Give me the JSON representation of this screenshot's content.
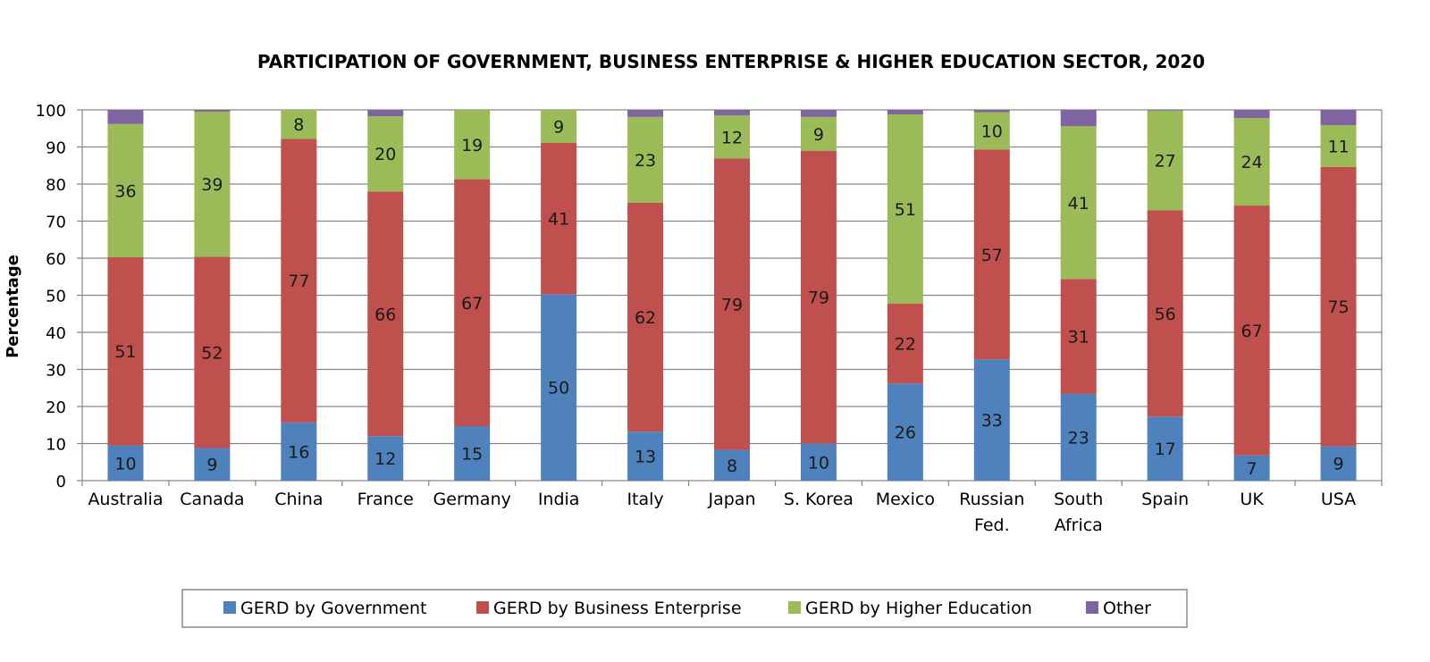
{
  "chart_data": {
    "type": "bar",
    "stacked": true,
    "title": "PARTICIPATION OF GOVERNMENT, BUSINESS ENTERPRISE & HIGHER EDUCATION SECTOR, 2020",
    "xlabel": "",
    "ylabel": "Percentage",
    "ylim": [
      0,
      100
    ],
    "yticks": [
      0,
      10,
      20,
      30,
      40,
      50,
      60,
      70,
      80,
      90,
      100
    ],
    "grid": true,
    "legend_position": "bottom",
    "categories": [
      [
        "Australia"
      ],
      [
        "Canada"
      ],
      [
        "China"
      ],
      [
        "France"
      ],
      [
        "Germany"
      ],
      [
        "India"
      ],
      [
        "Italy"
      ],
      [
        "Japan"
      ],
      [
        "S. Korea"
      ],
      [
        "Mexico"
      ],
      [
        "Russian",
        "Fed."
      ],
      [
        "South",
        "Africa"
      ],
      [
        "Spain"
      ],
      [
        "UK"
      ],
      [
        "USA"
      ]
    ],
    "series": [
      {
        "name": "GERD by Government",
        "color": "#4F81BD",
        "values": [
          9.5,
          8.8,
          15.7,
          12,
          14.7,
          50.3,
          13.2,
          8.3,
          10,
          26.2,
          32.7,
          23.4,
          17.3,
          6.8,
          9.3
        ],
        "labels": [
          "10",
          "9",
          "16",
          "12",
          "15",
          "50",
          "13",
          "8",
          "10",
          "26",
          "33",
          "23",
          "17",
          "7",
          "9"
        ]
      },
      {
        "name": "GERD by Business Enterprise",
        "color": "#C0504D",
        "values": [
          50.8,
          51.6,
          76.5,
          66,
          66.6,
          40.8,
          61.8,
          78.6,
          79,
          21.6,
          56.6,
          31,
          55.6,
          67.4,
          75.3
        ],
        "labels": [
          "51",
          "52",
          "77",
          "66",
          "67",
          "41",
          "62",
          "79",
          "79",
          "22",
          "57",
          "31",
          "56",
          "67",
          "75"
        ]
      },
      {
        "name": "GERD by Higher Education",
        "color": "#9BBB59",
        "values": [
          35.9,
          39.1,
          7.8,
          20.3,
          18.7,
          8.9,
          23.1,
          11.6,
          9.1,
          51,
          10.1,
          41.2,
          26.9,
          23.6,
          11.3
        ],
        "labels": [
          "36",
          "39",
          "8",
          "20",
          "19",
          "9",
          "23",
          "12",
          "9",
          "51",
          "10",
          "41",
          "27",
          "24",
          "11"
        ]
      },
      {
        "name": "Other",
        "color": "#8064A2",
        "values": [
          3.8,
          0.5,
          0,
          1.7,
          0,
          0,
          1.9,
          1.5,
          1.9,
          1.2,
          0.6,
          4.4,
          0.2,
          2.2,
          4.1
        ],
        "labels": [
          "",
          "",
          "",
          "",
          "",
          "",
          "",
          "",
          "",
          "",
          "",
          "",
          "",
          "",
          ""
        ]
      }
    ]
  }
}
